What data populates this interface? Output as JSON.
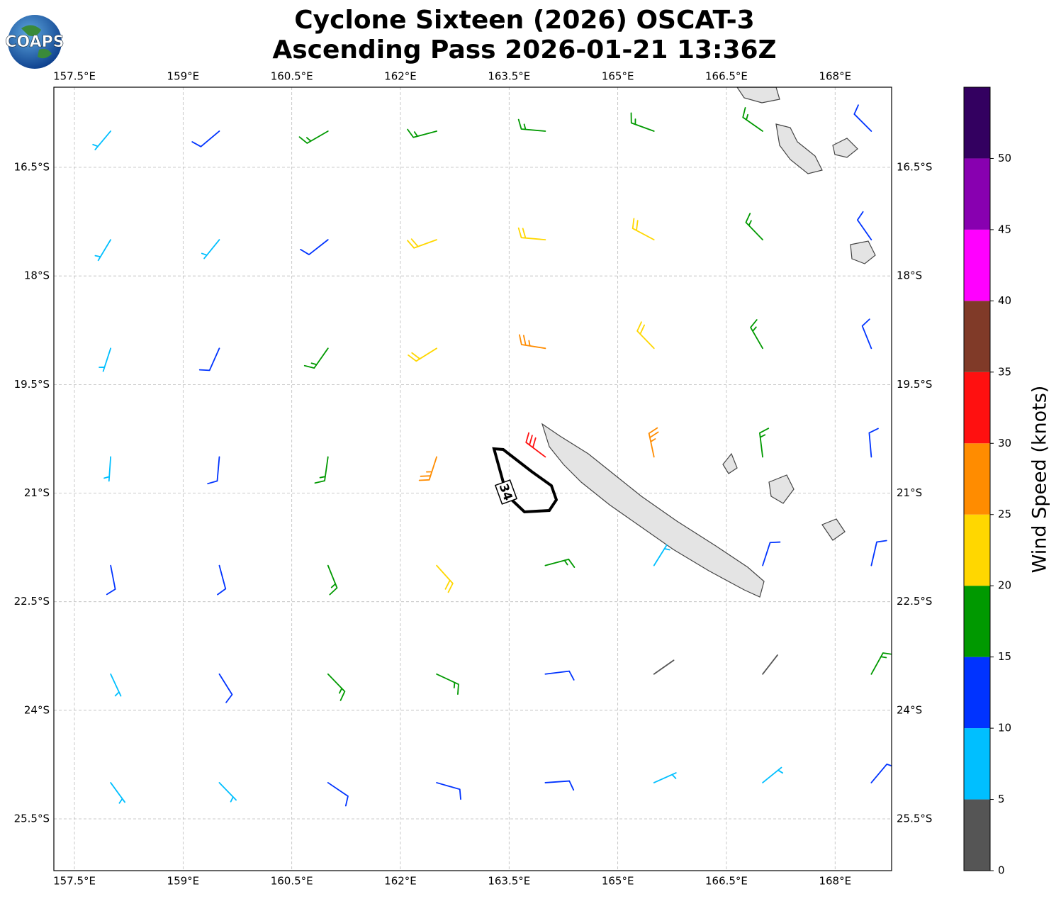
{
  "chart_data": {
    "type": "barbs",
    "title": [
      "Cyclone Sixteen (2026) OSCAT-3",
      "Ascending Pass 2026-01-21 13:36Z"
    ],
    "logo": "COAPS",
    "contour_label": 34,
    "xlim": [
      157.216,
      168.78
    ],
    "ylim": [
      -26.215,
      -15.393
    ],
    "xticks": [
      {
        "value": 157.5,
        "label": "157.5°E"
      },
      {
        "value": 159,
        "label": "159°E"
      },
      {
        "value": 160.5,
        "label": "160.5°E"
      },
      {
        "value": 162,
        "label": "162°E"
      },
      {
        "value": 163.5,
        "label": "163.5°E"
      },
      {
        "value": 165,
        "label": "165°E"
      },
      {
        "value": 166.5,
        "label": "166.5°E"
      },
      {
        "value": 168,
        "label": "168°E"
      }
    ],
    "yticks": [
      {
        "value": -16.5,
        "label": "16.5°S"
      },
      {
        "value": -18,
        "label": "18°S"
      },
      {
        "value": -19.5,
        "label": "19.5°S"
      },
      {
        "value": -21,
        "label": "21°S"
      },
      {
        "value": -22.5,
        "label": "22.5°S"
      },
      {
        "value": -24,
        "label": "24°S"
      },
      {
        "value": -25.5,
        "label": "25.5°S"
      }
    ],
    "grid": true,
    "barbs": {
      "lon": [
        158,
        159.5,
        161,
        162.5,
        164,
        165.5,
        167,
        168.5,
        158,
        159.5,
        161,
        162.5,
        164,
        165.5,
        167,
        168.5,
        158,
        159.5,
        161,
        162.5,
        164,
        165.5,
        167,
        168.5,
        158,
        159.5,
        161,
        162.5,
        164,
        165.5,
        167,
        168.5,
        158,
        159.5,
        161,
        162.5,
        164,
        165.5,
        167,
        168.5,
        158,
        159.5,
        161,
        162.5,
        164,
        165.5,
        167,
        168.5,
        158,
        159.5,
        161,
        162.5,
        164,
        165.5,
        167,
        168.5
      ],
      "lat": [
        -16,
        -16,
        -16,
        -16,
        -16,
        -16,
        -16,
        -16,
        -17.5,
        -17.5,
        -17.5,
        -17.5,
        -17.5,
        -17.5,
        -17.5,
        -17.5,
        -19,
        -19,
        -19,
        -19,
        -19,
        -19,
        -19,
        -19,
        -20.5,
        -20.5,
        -20.5,
        -20.5,
        -20.5,
        -20.5,
        -20.5,
        -20.5,
        -22,
        -22,
        -22,
        -22,
        -22,
        -22,
        -22,
        -22,
        -23.5,
        -23.5,
        -23.5,
        -23.5,
        -23.5,
        -23.5,
        -23.5,
        -23.5,
        -25,
        -25,
        -25,
        -25,
        -25,
        -25,
        -25,
        -25
      ],
      "speed": [
        8,
        12,
        15,
        17,
        17,
        18,
        15,
        12,
        7,
        9,
        14,
        20,
        22,
        20,
        15,
        13,
        8,
        12,
        17,
        23,
        25,
        22,
        17,
        14,
        9,
        12,
        17,
        27,
        33,
        25,
        17,
        14,
        12,
        14,
        17,
        22,
        18,
        8,
        10,
        14,
        9,
        12,
        15,
        16,
        12,
        3,
        4,
        15,
        8,
        9,
        11,
        12,
        10,
        7,
        5,
        12
      ],
      "direction": [
        220,
        230,
        240,
        255,
        275,
        290,
        305,
        315,
        211,
        219,
        232,
        250,
        275,
        298,
        316,
        325,
        198,
        204,
        215,
        238,
        279,
        316,
        330,
        338,
        184,
        185,
        188,
        198,
        307,
        348,
        353,
        355,
        169,
        165,
        158,
        138,
        75,
        32,
        18,
        13,
        155,
        148,
        136,
        115,
        83,
        55,
        38,
        29,
        144,
        136,
        124,
        106,
        86,
        66,
        51,
        40
      ]
    },
    "colorbar": {
      "label": "Wind Speed (knots)",
      "levels": [
        0,
        5,
        10,
        15,
        20,
        25,
        30,
        35,
        40,
        45,
        50,
        55
      ],
      "colors": [
        "#555555",
        "#00bfff",
        "#0033ff",
        "#009900",
        "#ffd700",
        "#ff8c00",
        "#ff1010",
        "#803a28",
        "#ff00ff",
        "#8800b0",
        "#330060"
      ],
      "ticks": [
        0,
        5,
        10,
        15,
        20,
        25,
        30,
        35,
        40,
        45,
        50
      ]
    }
  }
}
